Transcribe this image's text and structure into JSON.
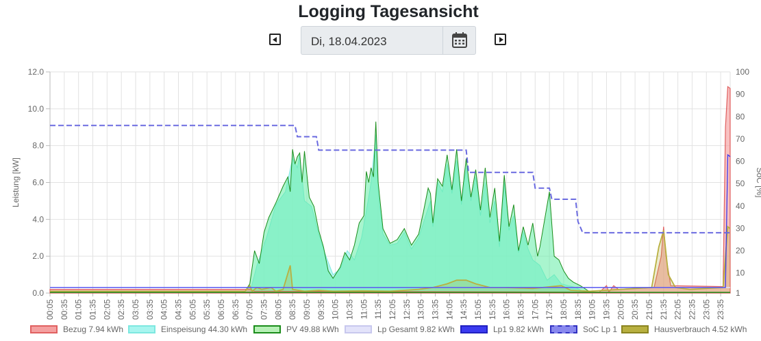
{
  "title": "Logging Tagesansicht",
  "date_nav": {
    "prev_icon": "arrow-left-square-icon",
    "date_value": "Di, 18.04.2023",
    "calendar_icon": "calendar-icon",
    "next_icon": "arrow-right-square-icon"
  },
  "chart_data": {
    "type": "area",
    "ylabel": "Leistung [kW]",
    "y2label": "SoC [%]",
    "ylim": [
      0,
      12
    ],
    "y2lim": [
      1,
      100
    ],
    "y_ticks": [
      "0.0",
      "2.0",
      "4.0",
      "6.0",
      "8.0",
      "10.0",
      "12.0"
    ],
    "y2_ticks": [
      "1",
      "10",
      "20",
      "30",
      "40",
      "50",
      "60",
      "70",
      "80",
      "90",
      "100"
    ],
    "x_ticks": [
      "00:05",
      "00:35",
      "01:05",
      "01:35",
      "02:05",
      "02:35",
      "03:05",
      "03:35",
      "04:05",
      "04:35",
      "05:05",
      "05:35",
      "06:05",
      "06:35",
      "07:05",
      "07:35",
      "08:05",
      "08:35",
      "09:05",
      "09:35",
      "10:05",
      "10:35",
      "11:05",
      "11:35",
      "12:05",
      "12:35",
      "13:05",
      "13:35",
      "14:05",
      "14:35",
      "15:05",
      "15:35",
      "16:05",
      "16:35",
      "17:05",
      "17:35",
      "18:05",
      "18:35",
      "19:05",
      "19:35",
      "20:05",
      "20:35",
      "21:05",
      "21:35",
      "22:05",
      "22:35",
      "23:05",
      "23:35"
    ],
    "grid": true,
    "legend_position": "bottom",
    "colors": {
      "bezug": "#f4a0a0",
      "bezug_line": "#e06060",
      "einspeisung": "#a8f5ef",
      "einspeisung_line": "#7de8e0",
      "pv": "#62eca5",
      "pv_line": "#1a8c1a",
      "lp_gesamt": "#e3e3fa",
      "lp1": "#3b3bf0",
      "soc": "#6a6ae0",
      "haus": "#b8b040"
    },
    "series": [
      {
        "name": "Bezug 7.94 kWh",
        "points": [
          [
            "00:05",
            0.2
          ],
          [
            "07:05",
            0.2
          ],
          [
            "07:15",
            0.1
          ],
          [
            "19:20",
            0.05
          ],
          [
            "19:35",
            0.4
          ],
          [
            "19:40",
            0.05
          ],
          [
            "19:50",
            0.4
          ],
          [
            "20:00",
            0.2
          ],
          [
            "21:15",
            0.3
          ],
          [
            "21:30",
            2.0
          ],
          [
            "21:35",
            3.6
          ],
          [
            "21:40",
            2.0
          ],
          [
            "21:50",
            0.4
          ],
          [
            "23:40",
            0.35
          ],
          [
            "23:45",
            9.0
          ],
          [
            "23:50",
            11.2
          ],
          [
            "23:55",
            11.1
          ]
        ]
      },
      {
        "name": "Einspeisung 44.30 kWh",
        "points": [
          [
            "07:05",
            0
          ],
          [
            "07:20",
            1.5
          ],
          [
            "07:40",
            3.0
          ],
          [
            "08:00",
            4.8
          ],
          [
            "08:20",
            5.5
          ],
          [
            "08:35",
            7.3
          ],
          [
            "08:45",
            6.8
          ],
          [
            "08:50",
            7.5
          ],
          [
            "09:00",
            5.0
          ],
          [
            "09:15",
            4.7
          ],
          [
            "09:30",
            3.2
          ],
          [
            "09:45",
            2.0
          ],
          [
            "10:00",
            1.0
          ],
          [
            "10:15",
            1.3
          ],
          [
            "10:30",
            2.3
          ],
          [
            "10:45",
            1.8
          ],
          [
            "11:00",
            3.0
          ],
          [
            "11:15",
            5.2
          ],
          [
            "11:20",
            6.0
          ],
          [
            "11:30",
            8.6
          ],
          [
            "11:35",
            5.5
          ],
          [
            "11:45",
            3.2
          ],
          [
            "12:00",
            2.6
          ],
          [
            "12:15",
            2.7
          ],
          [
            "12:30",
            3.3
          ],
          [
            "12:45",
            2.4
          ],
          [
            "13:00",
            3.0
          ],
          [
            "13:15",
            4.2
          ],
          [
            "13:25",
            5.0
          ],
          [
            "13:30",
            3.6
          ],
          [
            "13:40",
            6.0
          ],
          [
            "13:50",
            5.5
          ],
          [
            "14:00",
            7.0
          ],
          [
            "14:10",
            5.4
          ],
          [
            "14:20",
            7.2
          ],
          [
            "14:30",
            4.8
          ],
          [
            "14:40",
            6.8
          ],
          [
            "14:50",
            5.0
          ],
          [
            "15:00",
            6.3
          ],
          [
            "15:10",
            4.2
          ],
          [
            "15:20",
            6.0
          ],
          [
            "15:30",
            3.8
          ],
          [
            "15:40",
            5.0
          ],
          [
            "15:50",
            2.5
          ],
          [
            "16:00",
            6.0
          ],
          [
            "16:10",
            3.4
          ],
          [
            "16:20",
            4.2
          ],
          [
            "16:30",
            2.2
          ],
          [
            "16:40",
            3.3
          ],
          [
            "16:50",
            2.4
          ],
          [
            "17:00",
            1.8
          ],
          [
            "17:15",
            1.5
          ],
          [
            "17:30",
            0.7
          ],
          [
            "17:45",
            1.0
          ],
          [
            "18:00",
            0.5
          ],
          [
            "18:15",
            0.4
          ],
          [
            "18:30",
            0.3
          ],
          [
            "18:45",
            0.1
          ],
          [
            "19:00",
            0
          ]
        ]
      },
      {
        "name": "PV 49.88 kWh",
        "points": [
          [
            "00:05",
            0
          ],
          [
            "06:45",
            0
          ],
          [
            "06:55",
            0.1
          ],
          [
            "07:05",
            0.5
          ],
          [
            "07:15",
            2.3
          ],
          [
            "07:25",
            1.6
          ],
          [
            "07:35",
            3.3
          ],
          [
            "07:45",
            4.1
          ],
          [
            "08:00",
            4.9
          ],
          [
            "08:15",
            5.8
          ],
          [
            "08:25",
            6.3
          ],
          [
            "08:30",
            5.5
          ],
          [
            "08:35",
            7.8
          ],
          [
            "08:40",
            7.0
          ],
          [
            "08:45",
            7.4
          ],
          [
            "08:50",
            7.6
          ],
          [
            "08:55",
            6.0
          ],
          [
            "09:00",
            7.7
          ],
          [
            "09:10",
            5.2
          ],
          [
            "09:20",
            4.7
          ],
          [
            "09:30",
            3.4
          ],
          [
            "09:40",
            2.5
          ],
          [
            "09:50",
            1.2
          ],
          [
            "10:00",
            0.8
          ],
          [
            "10:15",
            1.4
          ],
          [
            "10:25",
            2.2
          ],
          [
            "10:35",
            1.8
          ],
          [
            "10:45",
            2.6
          ],
          [
            "10:55",
            3.8
          ],
          [
            "11:05",
            4.2
          ],
          [
            "11:10",
            6.6
          ],
          [
            "11:15",
            6.0
          ],
          [
            "11:20",
            6.8
          ],
          [
            "11:25",
            6.3
          ],
          [
            "11:30",
            9.3
          ],
          [
            "11:35",
            6.0
          ],
          [
            "11:45",
            3.5
          ],
          [
            "12:00",
            2.7
          ],
          [
            "12:15",
            2.9
          ],
          [
            "12:30",
            3.5
          ],
          [
            "12:45",
            2.6
          ],
          [
            "13:00",
            3.2
          ],
          [
            "13:10",
            4.4
          ],
          [
            "13:20",
            5.7
          ],
          [
            "13:25",
            5.4
          ],
          [
            "13:30",
            3.8
          ],
          [
            "13:40",
            6.2
          ],
          [
            "13:50",
            5.8
          ],
          [
            "14:00",
            7.5
          ],
          [
            "14:10",
            5.6
          ],
          [
            "14:20",
            7.8
          ],
          [
            "14:30",
            5.0
          ],
          [
            "14:40",
            7.3
          ],
          [
            "14:50",
            5.2
          ],
          [
            "15:00",
            6.7
          ],
          [
            "15:10",
            4.5
          ],
          [
            "15:20",
            6.8
          ],
          [
            "15:30",
            4.1
          ],
          [
            "15:40",
            5.7
          ],
          [
            "15:50",
            2.8
          ],
          [
            "16:00",
            6.4
          ],
          [
            "16:10",
            3.6
          ],
          [
            "16:20",
            4.8
          ],
          [
            "16:30",
            2.3
          ],
          [
            "16:40",
            3.6
          ],
          [
            "16:50",
            2.6
          ],
          [
            "17:00",
            3.8
          ],
          [
            "17:10",
            2.0
          ],
          [
            "17:15",
            2.5
          ],
          [
            "17:25",
            4.0
          ],
          [
            "17:35",
            5.5
          ],
          [
            "17:45",
            2.0
          ],
          [
            "17:55",
            1.8
          ],
          [
            "18:05",
            1.2
          ],
          [
            "18:15",
            0.8
          ],
          [
            "18:25",
            0.6
          ],
          [
            "18:40",
            0.4
          ],
          [
            "18:55",
            0.15
          ],
          [
            "19:05",
            0
          ],
          [
            "23:55",
            0
          ]
        ]
      },
      {
        "name": "Lp Gesamt 9.82 kWh",
        "points": [
          [
            "00:05",
            0.3
          ],
          [
            "23:55",
            0.3
          ]
        ]
      },
      {
        "name": "Lp1 9.82 kWh",
        "points": [
          [
            "00:05",
            0.3
          ],
          [
            "23:45",
            0.3
          ],
          [
            "23:50",
            7.5
          ],
          [
            "23:55",
            7.4
          ]
        ]
      },
      {
        "name": "SoC Lp 1",
        "axis": "right",
        "points": [
          [
            "00:05",
            76
          ],
          [
            "08:40",
            76
          ],
          [
            "08:45",
            71
          ],
          [
            "09:25",
            71
          ],
          [
            "09:30",
            65
          ],
          [
            "14:40",
            65
          ],
          [
            "14:45",
            55
          ],
          [
            "17:00",
            55
          ],
          [
            "17:05",
            48
          ],
          [
            "17:35",
            48
          ],
          [
            "17:40",
            43
          ],
          [
            "18:30",
            43
          ],
          [
            "18:35",
            33
          ],
          [
            "18:45",
            28
          ],
          [
            "23:55",
            28
          ]
        ]
      },
      {
        "name": "Hausverbrauch 4.52 kWh",
        "points": [
          [
            "00:05",
            0.1
          ],
          [
            "06:55",
            0.1
          ],
          [
            "07:05",
            0.4
          ],
          [
            "07:10",
            0.1
          ],
          [
            "07:20",
            0.3
          ],
          [
            "07:30",
            0.2
          ],
          [
            "07:50",
            0.3
          ],
          [
            "08:00",
            0.1
          ],
          [
            "08:15",
            0.2
          ],
          [
            "08:30",
            1.5
          ],
          [
            "08:35",
            0.2
          ],
          [
            "09:00",
            0.1
          ],
          [
            "09:30",
            0.15
          ],
          [
            "10:00",
            0.1
          ],
          [
            "11:00",
            0.12
          ],
          [
            "12:00",
            0.1
          ],
          [
            "13:00",
            0.2
          ],
          [
            "13:30",
            0.3
          ],
          [
            "14:00",
            0.5
          ],
          [
            "14:20",
            0.7
          ],
          [
            "14:40",
            0.7
          ],
          [
            "15:00",
            0.5
          ],
          [
            "15:30",
            0.3
          ],
          [
            "16:00",
            0.3
          ],
          [
            "17:00",
            0.25
          ],
          [
            "18:00",
            0.4
          ],
          [
            "18:20",
            0.15
          ],
          [
            "19:00",
            0.1
          ],
          [
            "21:10",
            0.3
          ],
          [
            "21:25",
            2.5
          ],
          [
            "21:35",
            3.4
          ],
          [
            "21:45",
            1.0
          ],
          [
            "22:00",
            0.3
          ],
          [
            "22:30",
            0.2
          ],
          [
            "23:40",
            0.3
          ],
          [
            "23:50",
            3.6
          ],
          [
            "23:55",
            3.5
          ]
        ]
      }
    ]
  }
}
